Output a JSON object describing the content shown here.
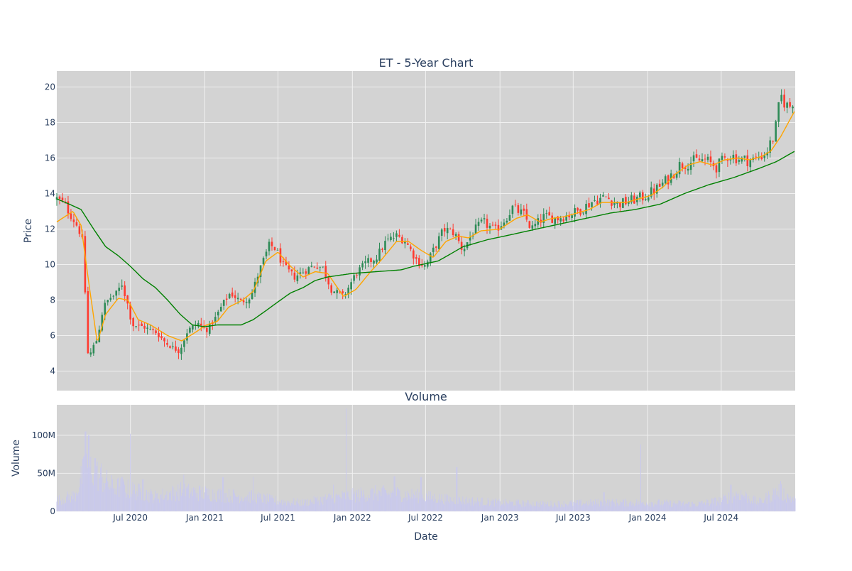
{
  "chart_data": [
    {
      "type": "candlestick",
      "title": "ET - 5-Year Chart",
      "xlabel": "",
      "ylabel": "Price",
      "ylim": [
        2.9,
        20.9
      ],
      "yticks": [
        4,
        6,
        8,
        10,
        12,
        14,
        16,
        18,
        20
      ],
      "grid": true,
      "legend": "none",
      "colors": {
        "increasing": "#2e8b57",
        "decreasing": "#ff3b30",
        "ma_short": "#ffa500",
        "ma_long": "#008000",
        "plot_bg": "#d3d3d3",
        "grid": "#f0f0f0",
        "text": "#2a3f5f"
      },
      "price_keypoints": [
        [
          "2020-01-01",
          13.7
        ],
        [
          "2020-01-20",
          13.4
        ],
        [
          "2020-02-10",
          12.6
        ],
        [
          "2020-02-25",
          12.0
        ],
        [
          "2020-03-05",
          11.2
        ],
        [
          "2020-03-12",
          8.0
        ],
        [
          "2020-03-19",
          4.5
        ],
        [
          "2020-03-27",
          5.2
        ],
        [
          "2020-04-10",
          5.8
        ],
        [
          "2020-04-25",
          7.6
        ],
        [
          "2020-05-10",
          8.1
        ],
        [
          "2020-05-25",
          8.3
        ],
        [
          "2020-06-10",
          8.9
        ],
        [
          "2020-06-25",
          7.7
        ],
        [
          "2020-07-05",
          6.6
        ],
        [
          "2020-08-01",
          6.5
        ],
        [
          "2020-09-01",
          6.2
        ],
        [
          "2020-10-01",
          5.5
        ],
        [
          "2020-10-30",
          5.1
        ],
        [
          "2020-11-20",
          6.3
        ],
        [
          "2020-12-15",
          6.7
        ],
        [
          "2021-01-05",
          6.3
        ],
        [
          "2021-01-25",
          6.9
        ],
        [
          "2021-02-15",
          7.8
        ],
        [
          "2021-03-05",
          8.4
        ],
        [
          "2021-04-01",
          7.9
        ],
        [
          "2021-04-25",
          8.2
        ],
        [
          "2021-05-15",
          9.6
        ],
        [
          "2021-06-10",
          11.1
        ],
        [
          "2021-06-25",
          10.9
        ],
        [
          "2021-07-15",
          9.9
        ],
        [
          "2021-08-10",
          9.3
        ],
        [
          "2021-09-01",
          9.6
        ],
        [
          "2021-10-01",
          10.0
        ],
        [
          "2021-10-20",
          9.8
        ],
        [
          "2021-11-10",
          8.6
        ],
        [
          "2021-12-10",
          8.2
        ],
        [
          "2022-01-10",
          9.5
        ],
        [
          "2022-02-05",
          10.1
        ],
        [
          "2022-03-01",
          10.4
        ],
        [
          "2022-03-25",
          11.3
        ],
        [
          "2022-04-20",
          11.6
        ],
        [
          "2022-05-10",
          11.4
        ],
        [
          "2022-06-10",
          10.2
        ],
        [
          "2022-07-01",
          9.9
        ],
        [
          "2022-07-20",
          10.8
        ],
        [
          "2022-08-15",
          12.0
        ],
        [
          "2022-09-10",
          11.8
        ],
        [
          "2022-10-01",
          10.8
        ],
        [
          "2022-10-25",
          11.8
        ],
        [
          "2022-11-20",
          12.4
        ],
        [
          "2022-12-20",
          11.9
        ],
        [
          "2023-01-15",
          12.6
        ],
        [
          "2023-02-01",
          13.2
        ],
        [
          "2023-03-01",
          12.8
        ],
        [
          "2023-03-20",
          12.0
        ],
        [
          "2023-04-20",
          12.7
        ],
        [
          "2023-05-20",
          12.6
        ],
        [
          "2023-06-20",
          12.8
        ],
        [
          "2023-07-20",
          13.1
        ],
        [
          "2023-08-20",
          13.6
        ],
        [
          "2023-09-20",
          13.8
        ],
        [
          "2023-10-20",
          13.4
        ],
        [
          "2023-11-20",
          13.6
        ],
        [
          "2023-12-20",
          13.8
        ],
        [
          "2024-01-20",
          14.2
        ],
        [
          "2024-02-20",
          14.8
        ],
        [
          "2024-03-20",
          15.6
        ],
        [
          "2024-04-20",
          15.8
        ],
        [
          "2024-05-20",
          15.9
        ],
        [
          "2024-06-20",
          15.5
        ],
        [
          "2024-07-20",
          16.2
        ],
        [
          "2024-08-20",
          15.9
        ],
        [
          "2024-09-20",
          15.9
        ],
        [
          "2024-10-20",
          16.3
        ],
        [
          "2024-11-10",
          17.3
        ],
        [
          "2024-11-25",
          19.5
        ],
        [
          "2024-12-15",
          18.8
        ],
        [
          "2024-12-31",
          19.5
        ]
      ],
      "ma_short_keypoints": [
        [
          "2020-01-01",
          12.4
        ],
        [
          "2020-02-10",
          13.0
        ],
        [
          "2020-03-01",
          12.2
        ],
        [
          "2020-03-20",
          9.0
        ],
        [
          "2020-04-10",
          5.6
        ],
        [
          "2020-05-01",
          7.2
        ],
        [
          "2020-06-01",
          8.1
        ],
        [
          "2020-06-25",
          8.0
        ],
        [
          "2020-07-20",
          6.9
        ],
        [
          "2020-08-20",
          6.6
        ],
        [
          "2020-10-01",
          6.0
        ],
        [
          "2020-11-05",
          5.7
        ],
        [
          "2020-12-10",
          6.2
        ],
        [
          "2021-01-05",
          6.6
        ],
        [
          "2021-02-01",
          6.8
        ],
        [
          "2021-03-01",
          7.6
        ],
        [
          "2021-04-05",
          8.0
        ],
        [
          "2021-05-01",
          8.5
        ],
        [
          "2021-06-01",
          10.2
        ],
        [
          "2021-07-01",
          10.7
        ],
        [
          "2021-08-01",
          9.9
        ],
        [
          "2021-09-01",
          9.3
        ],
        [
          "2021-10-01",
          9.6
        ],
        [
          "2021-11-01",
          9.5
        ],
        [
          "2021-12-10",
          8.2
        ],
        [
          "2022-01-10",
          8.6
        ],
        [
          "2022-02-15",
          9.6
        ],
        [
          "2022-03-15",
          10.3
        ],
        [
          "2022-04-20",
          11.3
        ],
        [
          "2022-05-20",
          11.3
        ],
        [
          "2022-06-20",
          10.8
        ],
        [
          "2022-07-20",
          10.4
        ],
        [
          "2022-08-20",
          11.3
        ],
        [
          "2022-09-20",
          11.6
        ],
        [
          "2022-10-15",
          11.5
        ],
        [
          "2022-11-15",
          11.9
        ],
        [
          "2023-01-01",
          12.0
        ],
        [
          "2023-02-10",
          12.6
        ],
        [
          "2023-03-10",
          12.8
        ],
        [
          "2023-04-10",
          12.4
        ],
        [
          "2023-05-10",
          12.6
        ],
        [
          "2023-06-10",
          12.7
        ],
        [
          "2023-07-10",
          12.9
        ],
        [
          "2023-08-10",
          13.1
        ],
        [
          "2023-09-10",
          13.5
        ],
        [
          "2023-10-10",
          13.5
        ],
        [
          "2023-11-10",
          13.5
        ],
        [
          "2023-12-10",
          13.7
        ],
        [
          "2024-01-10",
          13.9
        ],
        [
          "2024-02-10",
          14.4
        ],
        [
          "2024-03-10",
          15.1
        ],
        [
          "2024-04-10",
          15.6
        ],
        [
          "2024-05-10",
          15.8
        ],
        [
          "2024-06-10",
          15.6
        ],
        [
          "2024-07-10",
          15.9
        ],
        [
          "2024-08-10",
          16.0
        ],
        [
          "2024-09-10",
          15.9
        ],
        [
          "2024-10-10",
          16.1
        ],
        [
          "2024-11-01",
          16.4
        ],
        [
          "2024-11-25",
          17.2
        ],
        [
          "2024-12-31",
          18.7
        ]
      ],
      "ma_long_keypoints": [
        [
          "2020-01-01",
          13.7
        ],
        [
          "2020-02-01",
          13.4
        ],
        [
          "2020-03-01",
          13.1
        ],
        [
          "2020-04-01",
          12.0
        ],
        [
          "2020-05-01",
          11.0
        ],
        [
          "2020-06-01",
          10.5
        ],
        [
          "2020-07-01",
          9.9
        ],
        [
          "2020-08-01",
          9.2
        ],
        [
          "2020-09-01",
          8.7
        ],
        [
          "2020-10-01",
          8.0
        ],
        [
          "2020-11-01",
          7.2
        ],
        [
          "2020-12-01",
          6.6
        ],
        [
          "2021-01-01",
          6.5
        ],
        [
          "2021-02-01",
          6.6
        ],
        [
          "2021-03-01",
          6.6
        ],
        [
          "2021-04-01",
          6.6
        ],
        [
          "2021-05-01",
          6.9
        ],
        [
          "2021-06-01",
          7.4
        ],
        [
          "2021-07-01",
          7.9
        ],
        [
          "2021-08-01",
          8.4
        ],
        [
          "2021-09-01",
          8.7
        ],
        [
          "2021-10-01",
          9.1
        ],
        [
          "2021-11-01",
          9.3
        ],
        [
          "2021-12-01",
          9.4
        ],
        [
          "2022-01-01",
          9.5
        ],
        [
          "2022-03-01",
          9.6
        ],
        [
          "2022-05-01",
          9.7
        ],
        [
          "2022-06-01",
          9.9
        ],
        [
          "2022-08-01",
          10.2
        ],
        [
          "2022-09-01",
          10.6
        ],
        [
          "2022-10-01",
          11.0
        ],
        [
          "2022-12-01",
          11.4
        ],
        [
          "2023-02-01",
          11.7
        ],
        [
          "2023-04-01",
          12.0
        ],
        [
          "2023-06-01",
          12.3
        ],
        [
          "2023-08-01",
          12.6
        ],
        [
          "2023-10-01",
          12.9
        ],
        [
          "2023-12-01",
          13.1
        ],
        [
          "2024-02-01",
          13.4
        ],
        [
          "2024-04-01",
          14.0
        ],
        [
          "2024-06-01",
          14.5
        ],
        [
          "2024-08-01",
          14.9
        ],
        [
          "2024-10-01",
          15.4
        ],
        [
          "2024-11-15",
          15.8
        ],
        [
          "2024-12-31",
          16.4
        ]
      ]
    },
    {
      "type": "bar",
      "title": "Volume",
      "xlabel": "Date",
      "ylabel": "Volume",
      "ylim": [
        0,
        140000000
      ],
      "yticks": [
        0,
        50000000,
        100000000
      ],
      "ytick_labels": [
        "0",
        "50M",
        "100M"
      ],
      "bar_color": "#c8c8ef",
      "volume_baseline": [
        [
          "2020-01-01",
          15000000
        ],
        [
          "2020-02-15",
          22000000
        ],
        [
          "2020-03-15",
          65000000
        ],
        [
          "2020-04-15",
          48000000
        ],
        [
          "2020-05-15",
          35000000
        ],
        [
          "2020-07-01",
          30000000
        ],
        [
          "2020-09-01",
          20000000
        ],
        [
          "2020-11-01",
          28000000
        ],
        [
          "2021-01-01",
          25000000
        ],
        [
          "2021-03-01",
          22000000
        ],
        [
          "2021-05-01",
          20000000
        ],
        [
          "2021-07-01",
          14000000
        ],
        [
          "2021-09-01",
          12000000
        ],
        [
          "2021-11-01",
          18000000
        ],
        [
          "2022-01-01",
          22000000
        ],
        [
          "2022-03-01",
          25000000
        ],
        [
          "2022-05-01",
          24000000
        ],
        [
          "2022-07-01",
          20000000
        ],
        [
          "2022-09-01",
          16000000
        ],
        [
          "2022-11-01",
          14000000
        ],
        [
          "2023-01-01",
          12000000
        ],
        [
          "2023-05-01",
          10000000
        ],
        [
          "2023-09-01",
          12000000
        ],
        [
          "2024-01-01",
          12000000
        ],
        [
          "2024-05-01",
          10000000
        ],
        [
          "2024-07-01",
          15000000
        ],
        [
          "2024-08-15",
          25000000
        ],
        [
          "2024-10-01",
          12000000
        ],
        [
          "2024-11-20",
          28000000
        ],
        [
          "2024-12-31",
          15000000
        ]
      ],
      "volume_spikes": [
        [
          "2020-03-12",
          105000000
        ],
        [
          "2020-03-20",
          100000000
        ],
        [
          "2020-04-05",
          70000000
        ],
        [
          "2020-04-20",
          63000000
        ],
        [
          "2020-06-10",
          45000000
        ],
        [
          "2020-07-01",
          102000000
        ],
        [
          "2020-08-01",
          42000000
        ],
        [
          "2020-11-10",
          48000000
        ],
        [
          "2021-02-15",
          45000000
        ],
        [
          "2021-05-01",
          45000000
        ],
        [
          "2021-11-15",
          35000000
        ],
        [
          "2021-12-17",
          135000000
        ],
        [
          "2022-04-15",
          46000000
        ],
        [
          "2022-06-20",
          45000000
        ],
        [
          "2022-09-16",
          58000000
        ],
        [
          "2023-09-15",
          25000000
        ],
        [
          "2023-12-15",
          88000000
        ],
        [
          "2024-07-25",
          35000000
        ],
        [
          "2024-11-25",
          40000000
        ]
      ]
    }
  ],
  "x_axis": {
    "xlim": [
      "2020-01-01",
      "2024-12-31"
    ],
    "ticks": [
      {
        "date": "2020-07-01",
        "label": "Jul 2020"
      },
      {
        "date": "2021-01-01",
        "label": "Jan 2021"
      },
      {
        "date": "2021-07-01",
        "label": "Jul 2021"
      },
      {
        "date": "2022-01-01",
        "label": "Jan 2022"
      },
      {
        "date": "2022-07-01",
        "label": "Jul 2022"
      },
      {
        "date": "2023-01-01",
        "label": "Jan 2023"
      },
      {
        "date": "2023-07-01",
        "label": "Jul 2023"
      },
      {
        "date": "2024-01-01",
        "label": "Jan 2024"
      },
      {
        "date": "2024-07-01",
        "label": "Jul 2024"
      }
    ]
  }
}
